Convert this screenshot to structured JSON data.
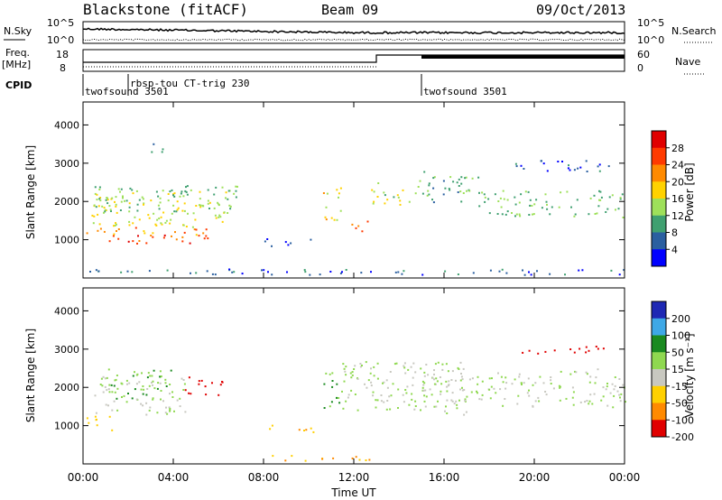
{
  "header": {
    "station": "Blackstone (fitACF)",
    "beam": "Beam 09",
    "date": "09/Oct/2013"
  },
  "noise_panel": {
    "left_label": "N.Sky",
    "right_label": "N.Search",
    "left_ticks": [
      "10^5",
      "10^0"
    ],
    "right_ticks": [
      "10^5",
      "10^0"
    ]
  },
  "freq_panel": {
    "left_label_line1": "Freq.",
    "left_label_line2": "[MHz]",
    "right_label": "Nave",
    "left_ticks": [
      "18",
      "8"
    ],
    "right_ticks": [
      "60",
      "0"
    ]
  },
  "cpid": {
    "label": "CPID",
    "segments": [
      {
        "start_hour": 0.0,
        "text": "twofsound 3501"
      },
      {
        "start_hour": 2.0,
        "text": "rbsp-tou CT-trig 230"
      },
      {
        "start_hour": 15.0,
        "text": "twofsound 3501"
      }
    ]
  },
  "x_axis": {
    "label": "Time UT",
    "range_hours": [
      0,
      24
    ],
    "tick_labels": [
      "00:00",
      "04:00",
      "08:00",
      "12:00",
      "16:00",
      "20:00",
      "00:00"
    ],
    "tick_hours": [
      0,
      4,
      8,
      12,
      16,
      20,
      24
    ]
  },
  "power_panel": {
    "ylabel": "Slant Range [km]",
    "yticks": [
      "4000",
      "3000",
      "2000",
      "1000"
    ],
    "ytick_values": [
      4000,
      3000,
      2000,
      1000
    ],
    "colorbar_label": "Power [dB]",
    "colorbar_ticks": [
      "28",
      "24",
      "20",
      "16",
      "12",
      "8",
      "4"
    ],
    "colorbar_colors": [
      "#e00000",
      "#ff3a00",
      "#ff8a00",
      "#ffd200",
      "#9ee05a",
      "#3fa070",
      "#2a5fa0",
      "#0000ff"
    ]
  },
  "velocity_panel": {
    "ylabel": "Slant Range [km]",
    "yticks": [
      "4000",
      "3000",
      "2000",
      "1000"
    ],
    "ytick_values": [
      4000,
      3000,
      2000,
      1000
    ],
    "colorbar_label": "Velocity [m s⁻¹]",
    "colorbar_ticks": [
      "200",
      "100",
      "50",
      "15",
      "-15",
      "-50",
      "-100",
      "-200"
    ],
    "colorbar_colors": [
      "#1e28b4",
      "#3ea8e6",
      "#1a8a20",
      "#8fd850",
      "#c8c8c0",
      "#ffd000",
      "#ff8a00",
      "#e00000"
    ]
  },
  "chart_data": {
    "type": "heatmap",
    "title": "Blackstone (fitACF)",
    "subtitle": "Beam 09",
    "xlabel": "Time UT",
    "ylabel": "Slant Range [km]",
    "xlim": [
      0,
      24
    ],
    "ylim": [
      0,
      4600
    ],
    "grid": false,
    "power_regions": [
      {
        "t0": 0.0,
        "t1": 5.6,
        "r0": 900,
        "r1": 1150,
        "db": 26
      },
      {
        "t0": 0.0,
        "t1": 5.6,
        "r0": 1150,
        "r1": 1350,
        "db": 22
      },
      {
        "t0": 0.3,
        "t1": 6.5,
        "r0": 1350,
        "r1": 2300,
        "db": 16
      },
      {
        "t0": 0.5,
        "t1": 7.0,
        "r0": 1700,
        "r1": 2450,
        "db": 12
      },
      {
        "t0": 3.0,
        "t1": 3.6,
        "r0": 3300,
        "r1": 3700,
        "db": 7
      },
      {
        "t0": 8.0,
        "t1": 10.2,
        "r0": 850,
        "r1": 1050,
        "db": 6
      },
      {
        "t0": 10.6,
        "t1": 11.4,
        "r0": 1400,
        "r1": 2400,
        "db": 17
      },
      {
        "t0": 11.8,
        "t1": 12.6,
        "r0": 1200,
        "r1": 1600,
        "db": 24
      },
      {
        "t0": 12.7,
        "t1": 14.5,
        "r0": 1900,
        "r1": 2500,
        "db": 15
      },
      {
        "t0": 14.5,
        "t1": 17.5,
        "r0": 2000,
        "r1": 2800,
        "db": 10
      },
      {
        "t0": 17.5,
        "t1": 24.0,
        "r0": 1600,
        "r1": 2300,
        "db": 12
      },
      {
        "t0": 19.0,
        "t1": 23.5,
        "r0": 2800,
        "r1": 3100,
        "db": 6
      },
      {
        "t0": 0.0,
        "t1": 24.0,
        "r0": 100,
        "r1": 250,
        "db": 6
      }
    ],
    "velocity_regions": [
      {
        "t0": 0.0,
        "t1": 1.3,
        "r0": 900,
        "r1": 1300,
        "v": -60
      },
      {
        "t0": 0.5,
        "t1": 4.5,
        "r0": 1300,
        "r1": 2400,
        "v": 0
      },
      {
        "t0": 1.0,
        "t1": 4.0,
        "r0": 1700,
        "r1": 2500,
        "v": 25
      },
      {
        "t0": 4.5,
        "t1": 6.2,
        "r0": 1800,
        "r1": 2300,
        "v": -180
      },
      {
        "t0": 8.0,
        "t1": 10.2,
        "r0": 850,
        "r1": 1050,
        "v": -70
      },
      {
        "t0": 10.6,
        "t1": 11.4,
        "r0": 1400,
        "r1": 2400,
        "v": 30
      },
      {
        "t0": 11.4,
        "t1": 17.0,
        "r0": 1300,
        "r1": 2700,
        "v": 0
      },
      {
        "t0": 15.0,
        "t1": 24.0,
        "r0": 1500,
        "r1": 2500,
        "v": 0
      },
      {
        "t0": 19.0,
        "t1": 23.5,
        "r0": 2900,
        "r1": 3100,
        "v": -200
      },
      {
        "t0": 8.0,
        "t1": 13.0,
        "r0": 100,
        "r1": 250,
        "v": -70
      }
    ]
  }
}
